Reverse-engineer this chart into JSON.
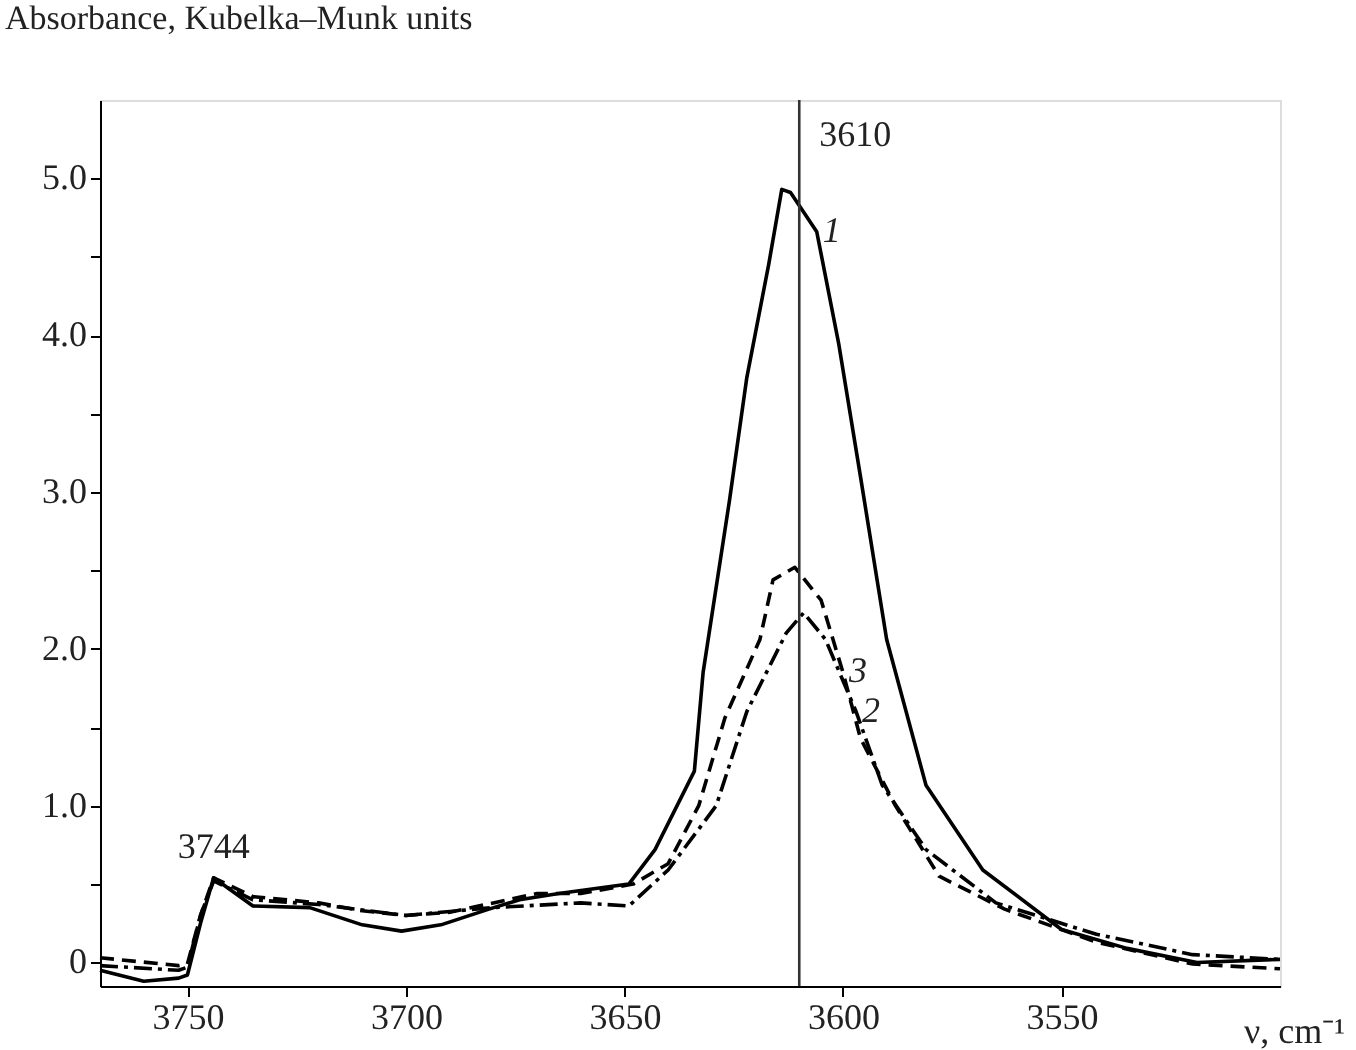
{
  "chart_data": {
    "type": "line",
    "ylabel": "Absorbance, Kubelka–Munk units",
    "xlabel": "ν, cm⁻¹",
    "xlim": [
      3770,
      3500
    ],
    "xticks": [
      3750,
      3700,
      3650,
      3600,
      3550
    ],
    "ylim": [
      -0.15,
      5.5
    ],
    "yticks": [
      {
        "value": 0,
        "label": "0"
      },
      {
        "value": 0.5,
        "label": null
      },
      {
        "value": 1,
        "label": "1.0"
      },
      {
        "value": 1.5,
        "label": null
      },
      {
        "value": 2,
        "label": "2.0"
      },
      {
        "value": 2.5,
        "label": null
      },
      {
        "value": 3,
        "label": "3.0"
      },
      {
        "value": 3.5,
        "label": null
      },
      {
        "value": 4,
        "label": "4.0"
      },
      {
        "value": 4.5,
        "label": null
      },
      {
        "value": 5,
        "label": "5.0"
      }
    ],
    "grid": false,
    "marker": "none",
    "series": [
      {
        "name": "1",
        "color": "#000000",
        "line_style": "solid",
        "x": [
          3770,
          3760,
          3752,
          3750,
          3747,
          3744,
          3735,
          3722,
          3710,
          3701,
          3692,
          3681,
          3674,
          3665,
          3649,
          3643,
          3634,
          3632,
          3626,
          3622,
          3617,
          3614,
          3612,
          3606,
          3601,
          3596,
          3590,
          3581,
          3568,
          3550,
          3535,
          3519,
          3500
        ],
        "values": [
          -0.05,
          -0.12,
          -0.1,
          -0.08,
          0.25,
          0.54,
          0.36,
          0.35,
          0.24,
          0.2,
          0.24,
          0.34,
          0.4,
          0.44,
          0.5,
          0.72,
          1.22,
          1.85,
          2.94,
          3.73,
          4.45,
          4.93,
          4.91,
          4.66,
          3.95,
          3.1,
          2.06,
          1.13,
          0.59,
          0.21,
          0.09,
          0.0,
          0.02
        ]
      },
      {
        "name": "2",
        "color": "#000000",
        "line_style": "dashdot",
        "x": [
          3770,
          3752,
          3750,
          3747,
          3744,
          3735,
          3720,
          3700,
          3680,
          3660,
          3649,
          3640,
          3629,
          3622,
          3613,
          3609,
          3604,
          3597,
          3591,
          3581,
          3565,
          3542,
          3520,
          3500
        ],
        "values": [
          -0.02,
          -0.05,
          -0.03,
          0.3,
          0.52,
          0.4,
          0.37,
          0.3,
          0.35,
          0.38,
          0.36,
          0.59,
          1.0,
          1.6,
          2.1,
          2.23,
          2.06,
          1.6,
          1.13,
          0.72,
          0.38,
          0.18,
          0.05,
          0.02
        ]
      },
      {
        "name": "3",
        "color": "#000000",
        "line_style": "dashed",
        "x": [
          3770,
          3752,
          3750,
          3747,
          3744,
          3735,
          3720,
          3710,
          3700,
          3690,
          3680,
          3670,
          3660,
          3648,
          3640,
          3633,
          3627,
          3619,
          3616,
          3611,
          3605,
          3600,
          3596,
          3588,
          3578,
          3563,
          3542,
          3520,
          3500
        ],
        "values": [
          0.03,
          -0.02,
          -0.01,
          0.3,
          0.54,
          0.42,
          0.38,
          0.33,
          0.3,
          0.32,
          0.38,
          0.44,
          0.44,
          0.5,
          0.63,
          1.0,
          1.56,
          2.06,
          2.44,
          2.52,
          2.31,
          1.85,
          1.43,
          1.0,
          0.55,
          0.34,
          0.13,
          -0.01,
          -0.04
        ]
      }
    ],
    "ref_lines": [
      {
        "axis": "x",
        "value": 3610,
        "label": "3610"
      }
    ],
    "annotations": [
      {
        "text": "3744",
        "x": 3744,
        "y": 0.54
      }
    ]
  }
}
